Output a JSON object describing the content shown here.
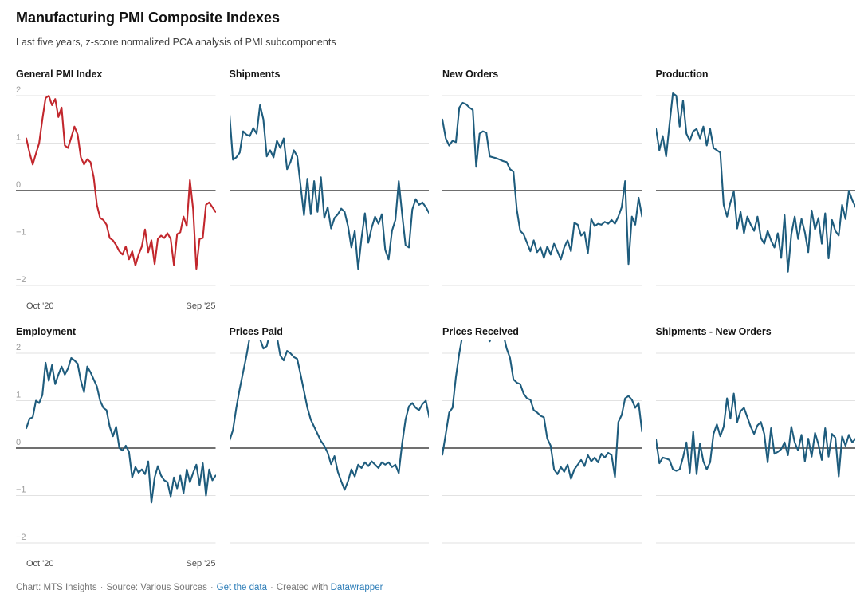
{
  "header": {
    "title": "Manufacturing PMI Composite Indexes",
    "subtitle": "Last five years, z-score normalized PCA analysis of PMI subcomponents"
  },
  "colors": {
    "accent_red": "#c2272d",
    "line_teal": "#1e5c7d",
    "gridline": "#e2e2e2",
    "zero_line": "#1a1a1a",
    "y_tick_label": "#9c9c9c",
    "x_tick_label": "#4e4e4e",
    "link_blue": "#2e7eb8"
  },
  "chart_data": {
    "type": "line",
    "layout": "small-multiples 2 rows x 4 cols",
    "title": "Manufacturing PMI Composite Indexes",
    "subtitle": "Last five years, z-score normalized PCA analysis of PMI subcomponents",
    "x_axis": {
      "start_label": "Oct '20",
      "end_label": "Sep '25",
      "points": 60,
      "unit": "months"
    },
    "y_axis": {
      "ylim": [
        -2.27,
        2.27
      ],
      "tick_values": [
        2,
        1,
        0,
        -1,
        -2
      ],
      "tick_labels": [
        "2",
        "1",
        "0",
        "−1",
        "−2"
      ],
      "zero_line": true,
      "grid": true
    },
    "panels": [
      {
        "title": "General PMI Index",
        "color": "#c2272d",
        "show_y_labels": true,
        "show_x_labels": true,
        "values": [
          1.1,
          0.8,
          0.55,
          0.78,
          1.0,
          1.5,
          1.95,
          2.0,
          1.8,
          1.93,
          1.55,
          1.75,
          0.95,
          0.9,
          1.12,
          1.35,
          1.18,
          0.7,
          0.55,
          0.66,
          0.6,
          0.28,
          -0.3,
          -0.58,
          -0.62,
          -0.72,
          -1.0,
          -1.05,
          -1.15,
          -1.28,
          -1.35,
          -1.18,
          -1.45,
          -1.28,
          -1.58,
          -1.35,
          -1.18,
          -0.82,
          -1.3,
          -1.05,
          -1.55,
          -1.02,
          -0.95,
          -1.0,
          -0.9,
          -1.02,
          -1.57,
          -0.92,
          -0.88,
          -0.55,
          -0.75,
          0.22,
          -0.4,
          -1.65,
          -1.02,
          -1.0,
          -0.3,
          -0.25,
          -0.35,
          -0.45
        ]
      },
      {
        "title": "Shipments",
        "color": "#1e5c7d",
        "show_y_labels": false,
        "show_x_labels": false,
        "values": [
          1.6,
          0.65,
          0.7,
          0.8,
          1.25,
          1.18,
          1.15,
          1.32,
          1.2,
          1.8,
          1.5,
          0.72,
          0.85,
          0.7,
          1.05,
          0.9,
          1.1,
          0.45,
          0.6,
          0.85,
          0.72,
          0.1,
          -0.52,
          0.25,
          -0.5,
          0.2,
          -0.45,
          0.28,
          -0.58,
          -0.35,
          -0.8,
          -0.58,
          -0.5,
          -0.38,
          -0.45,
          -0.75,
          -1.2,
          -0.85,
          -1.65,
          -1.0,
          -0.48,
          -1.1,
          -0.78,
          -0.55,
          -0.7,
          -0.5,
          -1.25,
          -1.45,
          -0.85,
          -0.62,
          0.2,
          -0.5,
          -1.15,
          -1.2,
          -0.4,
          -0.18,
          -0.3,
          -0.25,
          -0.35,
          -0.48
        ]
      },
      {
        "title": "New Orders",
        "color": "#1e5c7d",
        "show_y_labels": false,
        "show_x_labels": false,
        "values": [
          1.5,
          1.1,
          0.95,
          1.05,
          1.02,
          1.75,
          1.85,
          1.82,
          1.75,
          1.7,
          0.5,
          1.2,
          1.25,
          1.22,
          0.72,
          0.7,
          0.68,
          0.65,
          0.62,
          0.6,
          0.45,
          0.4,
          -0.4,
          -0.85,
          -0.92,
          -1.1,
          -1.28,
          -1.05,
          -1.3,
          -1.2,
          -1.42,
          -1.18,
          -1.35,
          -1.12,
          -1.28,
          -1.45,
          -1.2,
          -1.05,
          -1.28,
          -0.68,
          -0.72,
          -0.95,
          -0.88,
          -1.32,
          -0.6,
          -0.75,
          -0.7,
          -0.72,
          -0.66,
          -0.7,
          -0.62,
          -0.7,
          -0.55,
          -0.35,
          0.2,
          -1.55,
          -0.55,
          -0.72,
          -0.15,
          -0.55
        ]
      },
      {
        "title": "Production",
        "color": "#1e5c7d",
        "show_y_labels": false,
        "show_x_labels": false,
        "values": [
          1.3,
          0.85,
          1.15,
          0.72,
          1.4,
          2.05,
          2.0,
          1.35,
          1.9,
          1.2,
          1.05,
          1.25,
          1.3,
          1.1,
          1.35,
          0.95,
          1.3,
          0.9,
          0.85,
          0.8,
          -0.3,
          -0.55,
          -0.25,
          -0.02,
          -0.8,
          -0.45,
          -0.9,
          -0.55,
          -0.72,
          -0.85,
          -0.55,
          -1.0,
          -1.12,
          -0.85,
          -1.05,
          -1.2,
          -0.9,
          -1.42,
          -0.52,
          -1.71,
          -0.92,
          -0.55,
          -1.02,
          -0.6,
          -0.88,
          -1.3,
          -0.42,
          -0.82,
          -0.58,
          -1.12,
          -0.48,
          -1.43,
          -0.62,
          -0.85,
          -0.95,
          -0.3,
          -0.6,
          0.0,
          -0.2,
          -0.35
        ]
      },
      {
        "title": "Employment",
        "color": "#1e5c7d",
        "show_y_labels": true,
        "show_x_labels": true,
        "values": [
          0.42,
          0.62,
          0.65,
          1.0,
          0.95,
          1.12,
          1.8,
          1.42,
          1.75,
          1.35,
          1.55,
          1.72,
          1.55,
          1.68,
          1.9,
          1.85,
          1.78,
          1.42,
          1.18,
          1.72,
          1.6,
          1.45,
          1.3,
          1.0,
          0.85,
          0.8,
          0.45,
          0.25,
          0.45,
          0.0,
          -0.05,
          0.05,
          -0.08,
          -0.62,
          -0.4,
          -0.52,
          -0.45,
          -0.55,
          -0.28,
          -1.15,
          -0.62,
          -0.38,
          -0.58,
          -0.68,
          -0.72,
          -1.02,
          -0.62,
          -0.85,
          -0.58,
          -0.95,
          -0.45,
          -0.72,
          -0.52,
          -0.35,
          -0.78,
          -0.32,
          -1.0,
          -0.45,
          -0.68,
          -0.58
        ]
      },
      {
        "title": "Prices Paid",
        "color": "#1e5c7d",
        "show_y_labels": false,
        "show_x_labels": false,
        "values": [
          0.16,
          0.38,
          0.85,
          1.25,
          1.6,
          1.95,
          2.35,
          2.5,
          2.45,
          2.3,
          2.1,
          2.15,
          2.45,
          2.5,
          2.35,
          1.95,
          1.85,
          2.05,
          2.0,
          1.92,
          1.88,
          1.55,
          1.2,
          0.85,
          0.6,
          0.45,
          0.3,
          0.15,
          0.05,
          -0.1,
          -0.34,
          -0.17,
          -0.5,
          -0.7,
          -0.88,
          -0.7,
          -0.45,
          -0.6,
          -0.35,
          -0.42,
          -0.3,
          -0.38,
          -0.28,
          -0.35,
          -0.42,
          -0.3,
          -0.35,
          -0.3,
          -0.4,
          -0.35,
          -0.53,
          0.1,
          0.6,
          0.88,
          0.95,
          0.85,
          0.8,
          0.93,
          1.0,
          0.65
        ]
      },
      {
        "title": "Prices Received",
        "color": "#1e5c7d",
        "show_y_labels": false,
        "show_x_labels": false,
        "values": [
          -0.14,
          0.3,
          0.75,
          0.85,
          1.5,
          2.0,
          2.4,
          2.55,
          2.6,
          2.55,
          2.5,
          2.45,
          2.5,
          2.4,
          2.25,
          2.45,
          2.5,
          2.45,
          2.4,
          2.1,
          1.9,
          1.45,
          1.38,
          1.35,
          1.15,
          1.05,
          1.02,
          0.8,
          0.75,
          0.68,
          0.65,
          0.2,
          0.05,
          -0.45,
          -0.55,
          -0.4,
          -0.5,
          -0.35,
          -0.65,
          -0.45,
          -0.35,
          -0.25,
          -0.38,
          -0.15,
          -0.28,
          -0.2,
          -0.3,
          -0.12,
          -0.2,
          -0.1,
          -0.15,
          -0.61,
          0.55,
          0.7,
          1.05,
          1.1,
          1.02,
          0.85,
          0.95,
          0.35
        ]
      },
      {
        "title": "Shipments - New Orders",
        "color": "#1e5c7d",
        "show_y_labels": false,
        "show_x_labels": false,
        "values": [
          0.18,
          -0.32,
          -0.2,
          -0.22,
          -0.25,
          -0.45,
          -0.48,
          -0.45,
          -0.2,
          0.12,
          -0.52,
          0.35,
          -0.55,
          0.1,
          -0.28,
          -0.45,
          -0.3,
          0.3,
          0.5,
          0.25,
          0.45,
          1.05,
          0.62,
          1.15,
          0.55,
          0.78,
          0.85,
          0.65,
          0.45,
          0.3,
          0.48,
          0.55,
          0.3,
          -0.3,
          0.42,
          -0.12,
          -0.08,
          -0.02,
          0.12,
          -0.15,
          0.45,
          0.12,
          -0.05,
          0.28,
          -0.28,
          0.2,
          -0.18,
          0.32,
          0.08,
          -0.25,
          0.42,
          -0.18,
          0.3,
          0.22,
          -0.6,
          0.25,
          0.05,
          0.28,
          0.12,
          0.2
        ]
      }
    ]
  },
  "footer": {
    "chart_credit": "Chart: MTS Insights",
    "source": "Source: Various Sources",
    "get_data_link": "Get the data",
    "created_with": "Created with",
    "datawrapper_link": "Datawrapper",
    "separator": "·"
  }
}
